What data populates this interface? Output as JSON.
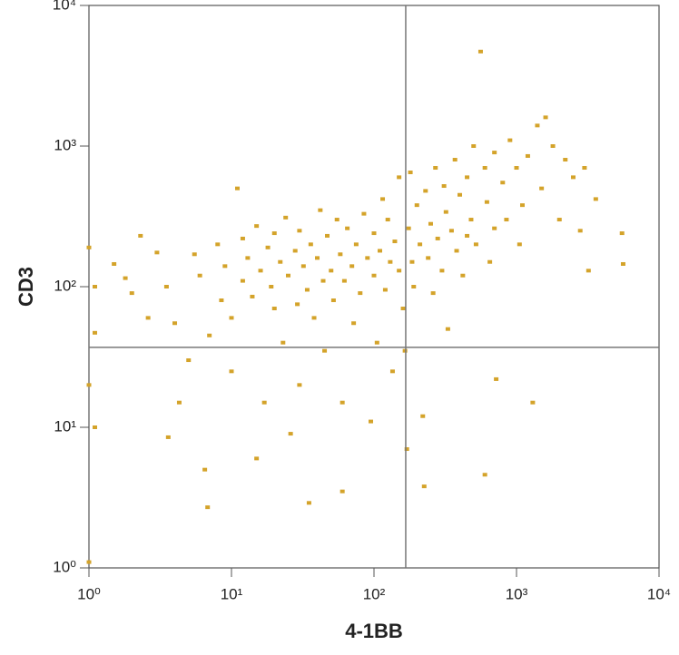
{
  "chart_data": {
    "type": "scatter",
    "x_label": "4-1BB",
    "y_label": "CD3",
    "log_x": true,
    "log_y": true,
    "color": "#d4a32a",
    "xlim": [
      1,
      10000
    ],
    "ylim": [
      1,
      10000
    ],
    "xticks": [
      {
        "value": 1,
        "label": "10⁰"
      },
      {
        "value": 10,
        "label": "10¹"
      },
      {
        "value": 100,
        "label": "10²"
      },
      {
        "value": 1000,
        "label": "10³"
      },
      {
        "value": 10000,
        "label": "10⁴"
      }
    ],
    "yticks": [
      {
        "value": 1,
        "label": "10⁰"
      },
      {
        "value": 10,
        "label": "10¹"
      },
      {
        "value": 100,
        "label": "10²"
      },
      {
        "value": 1000,
        "label": "10³"
      },
      {
        "value": 10000,
        "label": "10⁴"
      }
    ],
    "quadrant": {
      "x": 167,
      "y": 37
    },
    "x": [
      1.1,
      1.1,
      1.0,
      1.1,
      1.0,
      1.0,
      1.5,
      1.8,
      2.3,
      2.0,
      2.6,
      3,
      3.5,
      4,
      3.6,
      4.3,
      5,
      5.5,
      6,
      6.5,
      6.8,
      7,
      8,
      8.5,
      9,
      10,
      10,
      11,
      12,
      12,
      13,
      14,
      15,
      15,
      16,
      17,
      18,
      19,
      20,
      20,
      22,
      23,
      24,
      25,
      26,
      28,
      29,
      30,
      30,
      32,
      34,
      35,
      36,
      38,
      40,
      42,
      44,
      45,
      47,
      50,
      52,
      55,
      58,
      60,
      60,
      62,
      65,
      70,
      72,
      75,
      80,
      85,
      90,
      95,
      100,
      100,
      105,
      110,
      115,
      120,
      125,
      130,
      135,
      140,
      150,
      150,
      160,
      165,
      170,
      175,
      180,
      185,
      190,
      200,
      210,
      220,
      225,
      230,
      240,
      250,
      260,
      270,
      280,
      300,
      310,
      320,
      330,
      350,
      370,
      380,
      400,
      420,
      450,
      480,
      500,
      520,
      560,
      600,
      600,
      620,
      650,
      700,
      720,
      800,
      850,
      900,
      1000,
      1050,
      1200,
      1300,
      1400,
      1500,
      1600,
      1800,
      2000,
      2200,
      2500,
      2800,
      3000,
      3200,
      3600,
      5500,
      5600,
      1100,
      700,
      450
    ],
    "values": [
      100,
      47,
      190,
      10,
      1.1,
      20,
      145,
      115,
      230,
      90,
      60,
      175,
      100,
      55,
      8.5,
      15,
      30,
      170,
      120,
      5,
      2.7,
      45,
      200,
      80,
      140,
      25,
      60,
      500,
      110,
      220,
      160,
      85,
      270,
      6,
      130,
      15,
      190,
      100,
      70,
      240,
      150,
      40,
      310,
      120,
      9,
      180,
      75,
      250,
      20,
      140,
      95,
      2.9,
      200,
      60,
      160,
      350,
      110,
      35,
      230,
      130,
      80,
      300,
      170,
      3.5,
      15,
      110,
      260,
      140,
      55,
      200,
      90,
      330,
      160,
      11,
      120,
      240,
      40,
      180,
      420,
      95,
      300,
      150,
      25,
      210,
      600,
      130,
      70,
      35,
      7,
      260,
      650,
      150,
      100,
      380,
      200,
      12,
      3.8,
      480,
      160,
      280,
      90,
      700,
      220,
      130,
      520,
      340,
      50,
      250,
      800,
      180,
      450,
      120,
      600,
      300,
      1000,
      200,
      4700,
      700,
      4.6,
      400,
      150,
      900,
      22,
      550,
      300,
      1100,
      700,
      200,
      850,
      15,
      1400,
      500,
      1600,
      1000,
      300,
      800,
      600,
      250,
      700,
      130,
      420,
      240,
      145,
      380,
      260,
      230
    ]
  }
}
